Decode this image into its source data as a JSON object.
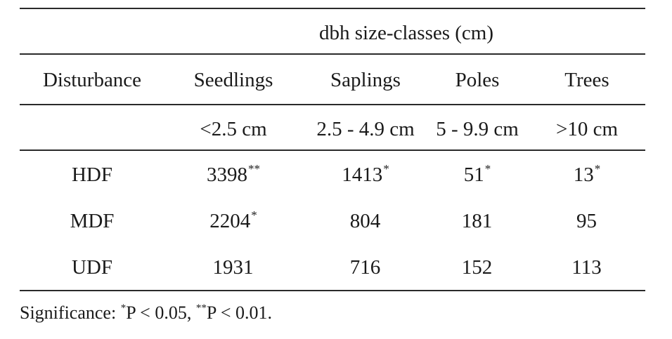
{
  "table": {
    "group_header": "dbh size-classes (cm)",
    "columns": [
      "Disturbance",
      "Seedlings",
      "Saplings",
      "Poles",
      "Trees"
    ],
    "ranges": [
      "",
      "<2.5 cm",
      "2.5 - 4.9 cm",
      "5 - 9.9 cm",
      ">10 cm"
    ],
    "rows": [
      {
        "label": "HDF",
        "cells": [
          {
            "value": "3398",
            "sig": "**"
          },
          {
            "value": "1413",
            "sig": "*"
          },
          {
            "value": "51",
            "sig": "*"
          },
          {
            "value": "13",
            "sig": "*"
          }
        ]
      },
      {
        "label": "MDF",
        "cells": [
          {
            "value": "2204",
            "sig": "*"
          },
          {
            "value": "804",
            "sig": ""
          },
          {
            "value": "181",
            "sig": ""
          },
          {
            "value": "95",
            "sig": ""
          }
        ]
      },
      {
        "label": "UDF",
        "cells": [
          {
            "value": "1931",
            "sig": ""
          },
          {
            "value": "716",
            "sig": ""
          },
          {
            "value": "152",
            "sig": ""
          },
          {
            "value": "113",
            "sig": ""
          }
        ]
      }
    ]
  },
  "footnote": {
    "label": "Significance:",
    "sig1_mark": "*",
    "sig1_text": "P < 0.05,",
    "sig2_mark": "**",
    "sig2_text": "P < 0.01."
  }
}
